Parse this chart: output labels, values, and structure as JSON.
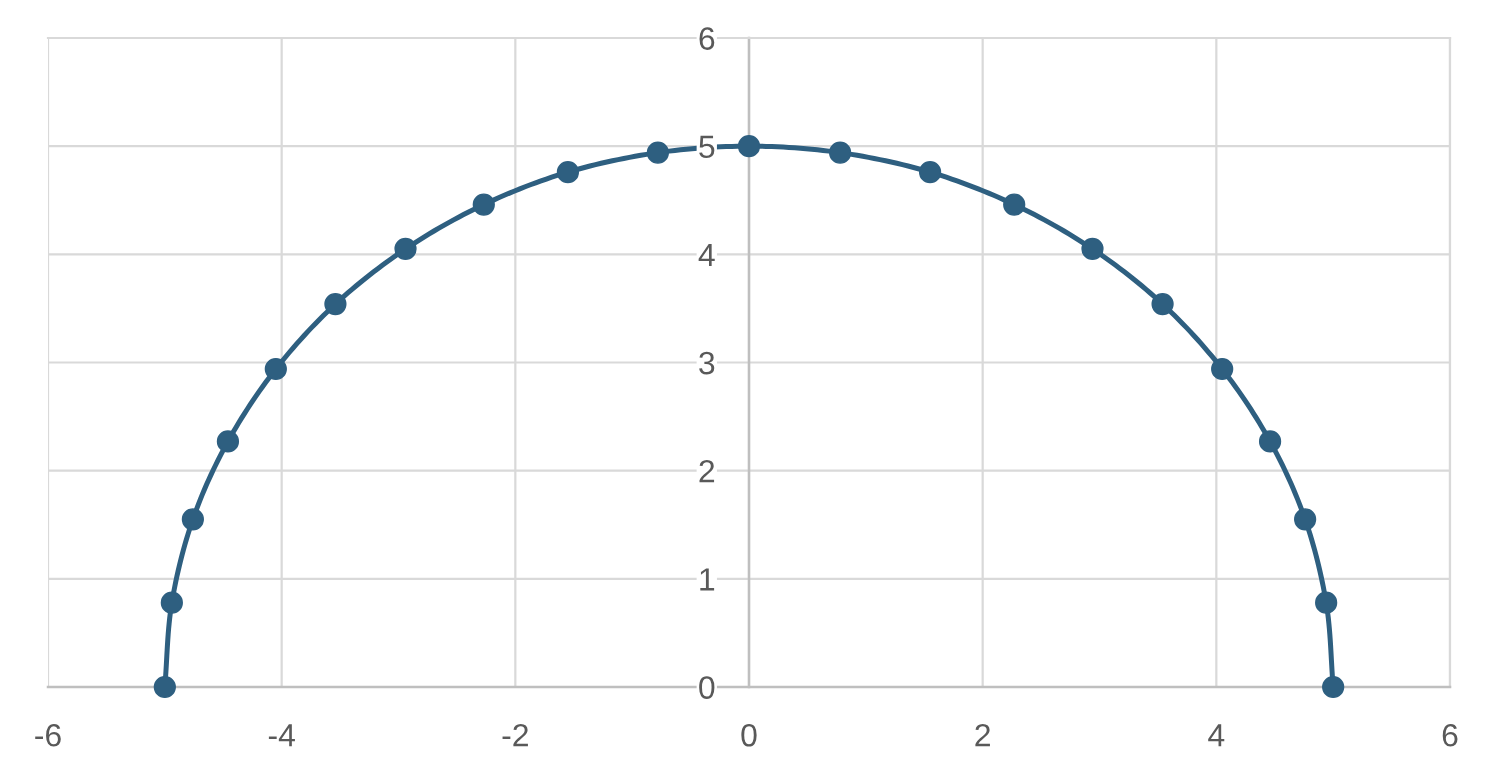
{
  "chart_data": {
    "type": "line",
    "x": [
      -5,
      -4.94,
      -4.76,
      -4.46,
      -4.05,
      -3.54,
      -2.94,
      -2.27,
      -1.55,
      -0.78,
      0,
      0.78,
      1.55,
      2.27,
      2.94,
      3.54,
      4.05,
      4.46,
      4.76,
      4.94,
      5
    ],
    "series": [
      {
        "color": "#2e5f80",
        "values": [
          0,
          0.78,
          1.55,
          2.27,
          2.94,
          3.54,
          4.05,
          4.46,
          4.76,
          4.94,
          5,
          4.94,
          4.76,
          4.46,
          4.05,
          3.54,
          2.94,
          2.27,
          1.55,
          0.78,
          0
        ]
      }
    ],
    "marker": "circle",
    "line_style": "solid",
    "xlim": [
      -6,
      6
    ],
    "ylim": [
      0,
      6
    ],
    "xticks": [
      -6,
      -4,
      -2,
      0,
      2,
      4,
      6
    ],
    "yticks": [
      0,
      1,
      2,
      3,
      4,
      5,
      6
    ],
    "grid": true
  }
}
